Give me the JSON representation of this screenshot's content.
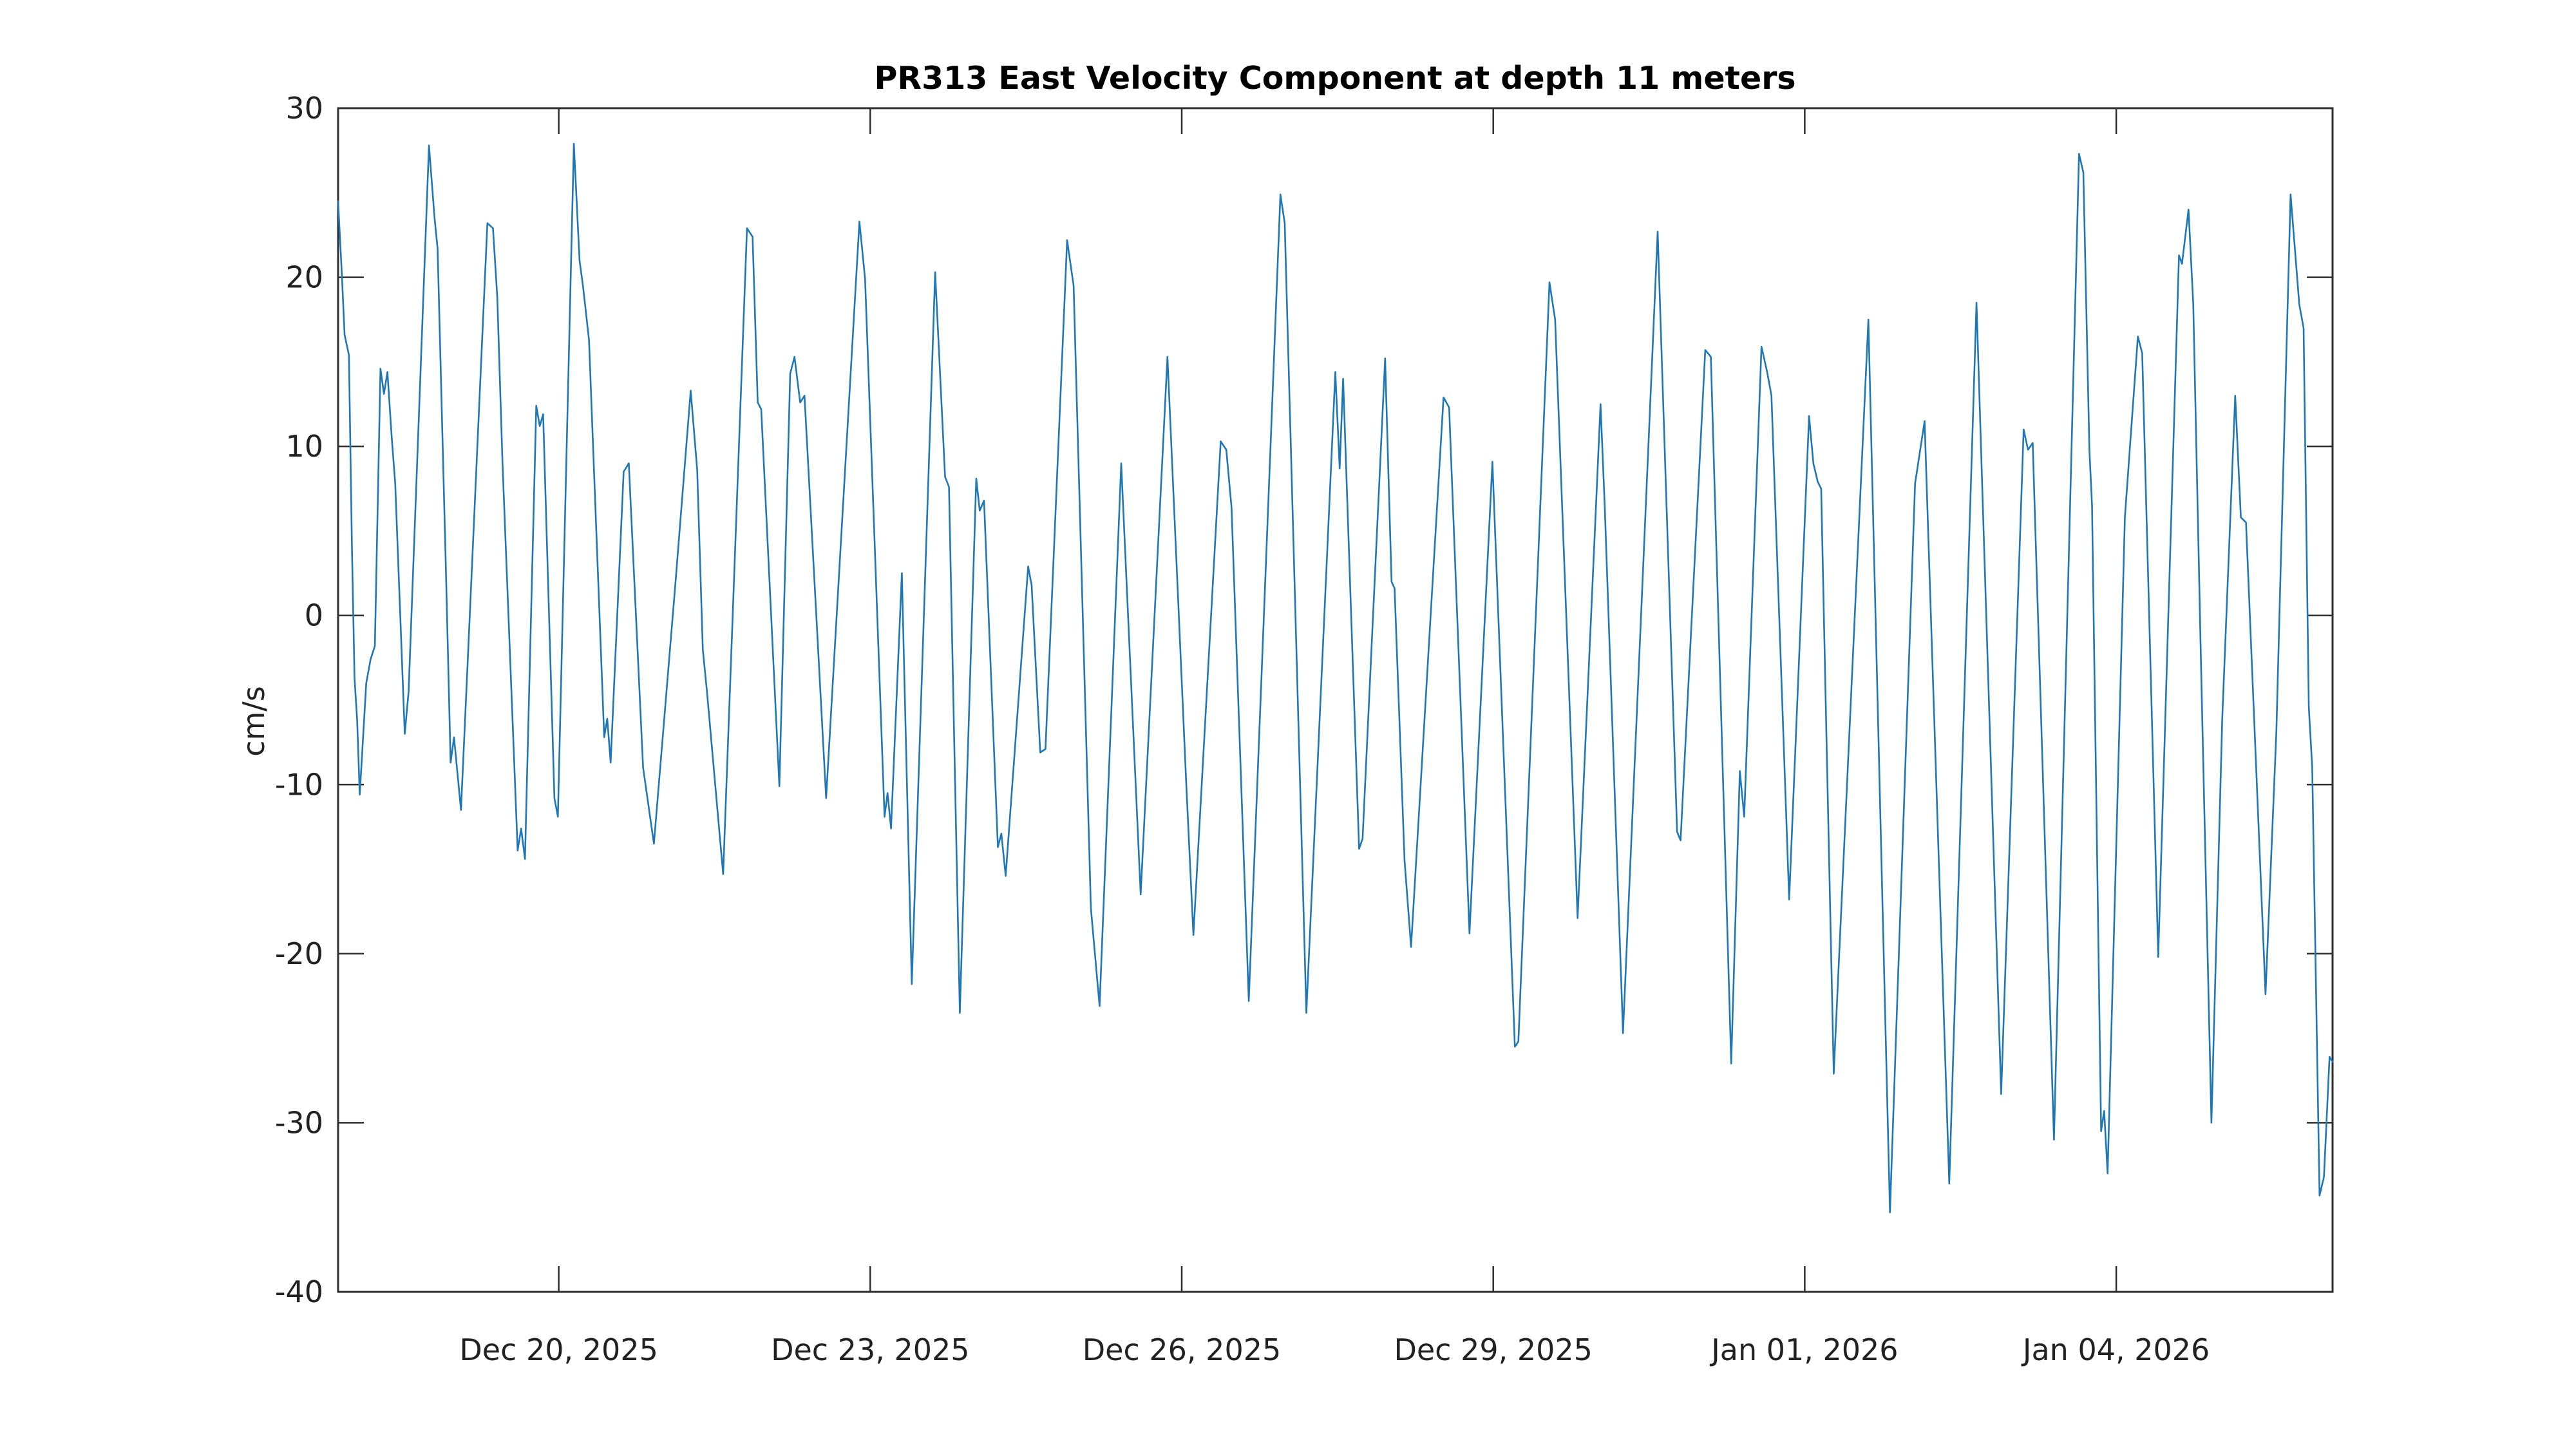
{
  "chart_data": {
    "type": "line",
    "title": "PR313 East Velocity Component at depth 11 meters",
    "ylabel": "cm/s",
    "ylim": [
      -40,
      30
    ],
    "yticks": [
      30,
      20,
      10,
      0,
      -10,
      -20,
      -30,
      -40
    ],
    "ytick_labels": [
      "30",
      "20",
      "10",
      "0",
      "-10",
      "-20",
      "-30",
      "-40"
    ],
    "xtick_labels": [
      "Dec 20, 2025",
      "Dec 23, 2025",
      "Dec 26, 2025",
      "Dec 29, 2025",
      "Jan 01, 2026",
      "Jan 04, 2026"
    ],
    "xticks_hours": [
      51,
      123,
      195,
      267,
      339,
      411
    ],
    "x_unit": "hours along record (24 h between day ticks, ticks every 3 days)",
    "x_range_hours": [
      0,
      461
    ],
    "grid": "off",
    "legend": "none",
    "line_color": "#1f77b4",
    "axis_color": "#2e2e2e",
    "background_color": "#ffffff",
    "series": [
      {
        "name": "east velocity (cm/s)",
        "points": [
          [
            0,
            24.5
          ],
          [
            0.8,
            20.5
          ],
          [
            1.5,
            16.6
          ],
          [
            2.5,
            15.4
          ],
          [
            3.2,
            4.0
          ],
          [
            3.8,
            -3.7
          ],
          [
            4.4,
            -6.2
          ],
          [
            5,
            -10.6
          ],
          [
            6.5,
            -4.0
          ],
          [
            7.5,
            -2.6
          ],
          [
            8.5,
            -1.8
          ],
          [
            9.8,
            14.6
          ],
          [
            10.6,
            13.1
          ],
          [
            11.4,
            14.4
          ],
          [
            12.4,
            10.5
          ],
          [
            13.2,
            7.8
          ],
          [
            15.4,
            -7.0
          ],
          [
            16.3,
            -4.5
          ],
          [
            21,
            27.8
          ],
          [
            22.3,
            23.5
          ],
          [
            23,
            21.7
          ],
          [
            25,
            1.8
          ],
          [
            26,
            -8.7
          ],
          [
            26.8,
            -7.2
          ],
          [
            28.4,
            -11.5
          ],
          [
            30,
            -2.5
          ],
          [
            34.5,
            23.2
          ],
          [
            35.8,
            22.9
          ],
          [
            36.8,
            18.8
          ],
          [
            38,
            9.0
          ],
          [
            41.5,
            -13.9
          ],
          [
            42.3,
            -12.6
          ],
          [
            43.2,
            -14.4
          ],
          [
            45.8,
            12.4
          ],
          [
            46.6,
            11.2
          ],
          [
            47.4,
            11.9
          ],
          [
            50,
            -10.8
          ],
          [
            50.8,
            -11.9
          ],
          [
            54.5,
            27.9
          ],
          [
            55.8,
            21.0
          ],
          [
            56.6,
            19.5
          ],
          [
            58,
            16.3
          ],
          [
            61.5,
            -7.2
          ],
          [
            62.2,
            -6.1
          ],
          [
            63,
            -8.7
          ],
          [
            66,
            8.5
          ],
          [
            67.2,
            9.0
          ],
          [
            70.5,
            -9.0
          ],
          [
            73,
            -13.5
          ],
          [
            78,
            2.0
          ],
          [
            81.5,
            13.3
          ],
          [
            83,
            8.6
          ],
          [
            84.3,
            -2.0
          ],
          [
            85.3,
            -4.6
          ],
          [
            89,
            -15.3
          ],
          [
            94.5,
            22.9
          ],
          [
            95.8,
            22.4
          ],
          [
            97,
            12.6
          ],
          [
            97.8,
            12.2
          ],
          [
            102,
            -10.1
          ],
          [
            104.5,
            14.3
          ],
          [
            105.5,
            15.3
          ],
          [
            106.8,
            12.6
          ],
          [
            107.8,
            13.0
          ],
          [
            112.8,
            -10.8
          ],
          [
            120.5,
            23.3
          ],
          [
            121.8,
            19.9
          ],
          [
            126.3,
            -11.9
          ],
          [
            127,
            -10.5
          ],
          [
            127.8,
            -12.6
          ],
          [
            130.3,
            2.5
          ],
          [
            132.6,
            -21.8
          ],
          [
            138,
            20.3
          ],
          [
            140.3,
            8.2
          ],
          [
            141.2,
            7.6
          ],
          [
            143.7,
            -23.5
          ],
          [
            147.5,
            8.1
          ],
          [
            148.3,
            6.2
          ],
          [
            149.3,
            6.8
          ],
          [
            152.5,
            -13.7
          ],
          [
            153.3,
            -12.9
          ],
          [
            154.3,
            -15.4
          ],
          [
            159.5,
            2.9
          ],
          [
            160.3,
            1.8
          ],
          [
            162.3,
            -8.1
          ],
          [
            163.5,
            -7.9
          ],
          [
            168.5,
            22.2
          ],
          [
            170,
            19.5
          ],
          [
            174,
            -17.3
          ],
          [
            176,
            -23.1
          ],
          [
            181,
            9.0
          ],
          [
            185.5,
            -16.5
          ],
          [
            191.7,
            15.3
          ],
          [
            196,
            -9.7
          ],
          [
            197.7,
            -18.9
          ],
          [
            204,
            10.3
          ],
          [
            205.3,
            9.8
          ],
          [
            206.5,
            6.4
          ],
          [
            210.5,
            -22.8
          ],
          [
            217.8,
            24.9
          ],
          [
            218.8,
            23.2
          ],
          [
            223.8,
            -23.5
          ],
          [
            230.5,
            14.4
          ],
          [
            231.5,
            8.7
          ],
          [
            232.3,
            14.0
          ],
          [
            236,
            -13.8
          ],
          [
            236.8,
            -13.2
          ],
          [
            242,
            15.2
          ],
          [
            243.5,
            2.0
          ],
          [
            244.2,
            1.6
          ],
          [
            246.5,
            -14.5
          ],
          [
            248,
            -19.6
          ],
          [
            255.5,
            12.9
          ],
          [
            256.8,
            12.3
          ],
          [
            261.5,
            -18.8
          ],
          [
            266.8,
            9.1
          ],
          [
            272,
            -25.5
          ],
          [
            272.8,
            -25.2
          ],
          [
            280,
            19.7
          ],
          [
            281.3,
            17.5
          ],
          [
            286.5,
            -17.9
          ],
          [
            291.8,
            12.5
          ],
          [
            292.8,
            6.3
          ],
          [
            297,
            -24.7
          ],
          [
            305,
            22.7
          ],
          [
            309.5,
            -12.8
          ],
          [
            310.3,
            -13.3
          ],
          [
            316,
            15.7
          ],
          [
            317.3,
            15.3
          ],
          [
            322,
            -26.5
          ],
          [
            324,
            -9.2
          ],
          [
            325,
            -11.9
          ],
          [
            329,
            15.9
          ],
          [
            330.3,
            14.4
          ],
          [
            331.3,
            13.0
          ],
          [
            335.4,
            -16.8
          ],
          [
            340,
            11.8
          ],
          [
            341,
            9.0
          ],
          [
            342,
            7.9
          ],
          [
            342.8,
            7.5
          ],
          [
            343.8,
            -4.5
          ],
          [
            345.7,
            -27.1
          ],
          [
            353.7,
            17.5
          ],
          [
            358.7,
            -35.3
          ],
          [
            364.5,
            7.8
          ],
          [
            366.7,
            11.5
          ],
          [
            372.4,
            -33.6
          ],
          [
            378.7,
            18.5
          ],
          [
            384.4,
            -28.3
          ],
          [
            389.6,
            11.0
          ],
          [
            390.6,
            9.8
          ],
          [
            391.7,
            10.2
          ],
          [
            396.6,
            -31.0
          ],
          [
            402.4,
            27.3
          ],
          [
            403.4,
            26.2
          ],
          [
            404.8,
            9.8
          ],
          [
            405.4,
            6.5
          ],
          [
            407.5,
            -30.5
          ],
          [
            408.2,
            -29.3
          ],
          [
            409,
            -33.0
          ],
          [
            413,
            5.8
          ],
          [
            416,
            16.5
          ],
          [
            417,
            15.5
          ],
          [
            420.7,
            -20.2
          ],
          [
            425.5,
            21.3
          ],
          [
            426.2,
            20.8
          ],
          [
            427.7,
            24.0
          ],
          [
            428.8,
            18.4
          ],
          [
            430.5,
            -1.8
          ],
          [
            433,
            -30.0
          ],
          [
            435.5,
            -6.1
          ],
          [
            438.5,
            13.0
          ],
          [
            439.8,
            5.8
          ],
          [
            441,
            5.5
          ],
          [
            445.5,
            -22.4
          ],
          [
            448,
            -6.9
          ],
          [
            451.3,
            24.9
          ],
          [
            453.3,
            18.4
          ],
          [
            454.3,
            17.0
          ],
          [
            455.5,
            -5.4
          ],
          [
            456.3,
            -9.0
          ],
          [
            458,
            -34.3
          ],
          [
            459,
            -33.2
          ],
          [
            460.3,
            -26.1
          ],
          [
            461,
            -26.4
          ]
        ]
      }
    ]
  }
}
